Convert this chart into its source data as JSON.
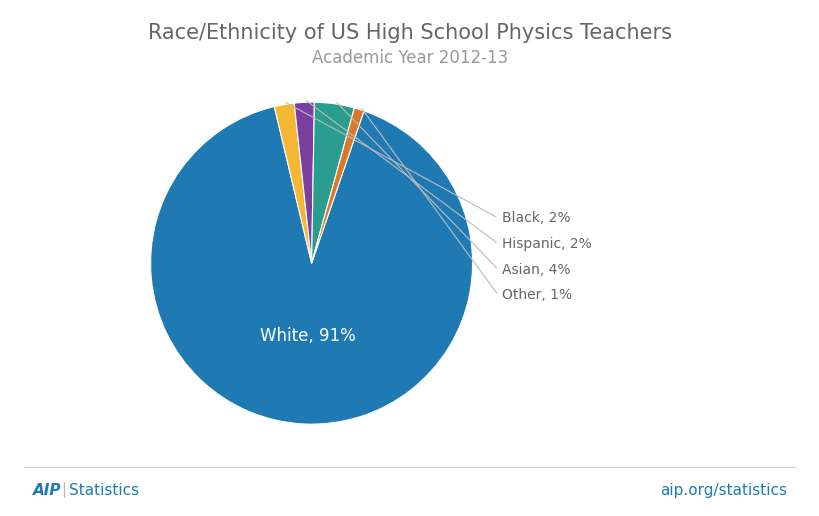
{
  "title": "Race/Ethnicity of US High School Physics Teachers",
  "subtitle": "Academic Year 2012-13",
  "labels": [
    "White",
    "Black",
    "Hispanic",
    "Asian",
    "Other"
  ],
  "values": [
    91,
    2,
    2,
    4,
    1
  ],
  "colors": [
    "#1f7ab4",
    "#f5b731",
    "#7b3fa0",
    "#2a9d8f",
    "#d97a2a"
  ],
  "background_color": "#ffffff",
  "title_fontsize": 15,
  "subtitle_fontsize": 12,
  "footer_right": "aip.org/statistics",
  "footer_color": "#1f7ab4",
  "white_label": "White, 91%",
  "small_labels": [
    "Black, 2%",
    "Hispanic, 2%",
    "Asian, 4%",
    "Other, 1%"
  ],
  "text_color": "#666666",
  "line_color": "#bbbbbb"
}
